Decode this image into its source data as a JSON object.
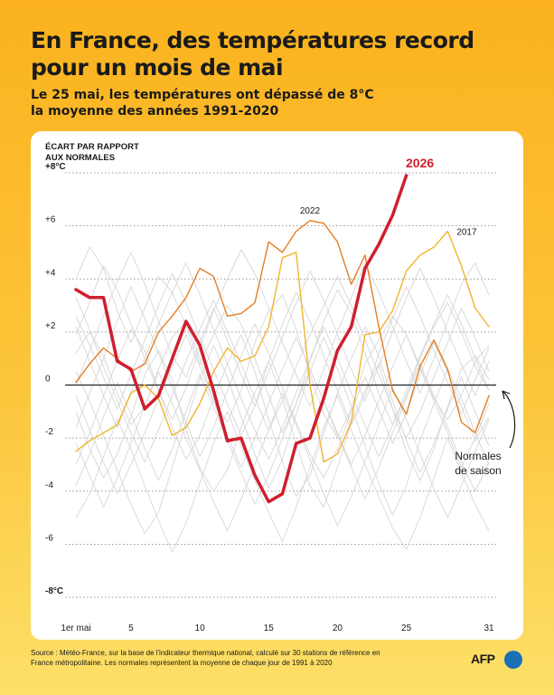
{
  "header": {
    "title_line1": "En France, des températures record",
    "title_line2": "pour un mois de mai",
    "subtitle_line1": "Le 25 mai, les températures ont dépassé de 8°C",
    "subtitle_line2": "la moyenne des années 1991-2020"
  },
  "footer": {
    "source_line1": "Source : Météo-France, sur la base de l'indicateur thermique national, calculé sur 30 stations de référence en",
    "source_line2": "France métropolitaine. Les normales représentent la moyenne de chaque jour de 1991 à 2020",
    "logo": "AFP"
  },
  "chart_data": {
    "type": "line",
    "ylabel_line1": "ÉCART PAR RAPPORT",
    "ylabel_line2": "AUX NORMALES",
    "ylim": [
      -8,
      8
    ],
    "xlim": [
      1,
      31
    ],
    "y_ticks": [
      "+8°C",
      "+6",
      "+4",
      "+2",
      "0",
      "-2",
      "-4",
      "-6",
      "-8°C"
    ],
    "x_ticks": [
      {
        "x": 1,
        "label": "1er mai"
      },
      {
        "x": 5,
        "label": "5"
      },
      {
        "x": 10,
        "label": "10"
      },
      {
        "x": 15,
        "label": "15"
      },
      {
        "x": 20,
        "label": "20"
      },
      {
        "x": 25,
        "label": "25"
      },
      {
        "x": 31,
        "label": "31"
      }
    ],
    "grid": "horizontal dotted",
    "annotation": {
      "line1": "Normales",
      "line2": "de saison"
    },
    "colors": {
      "y2026": "#cf1f2e",
      "y2022": "#e67e22",
      "y2017": "#f0b52d",
      "other": "#d6d6d6",
      "zero": "#222222"
    },
    "series": [
      {
        "name": "2026",
        "x": [
          1,
          2,
          3,
          4,
          5,
          6,
          7,
          8,
          9,
          10,
          11,
          12,
          13,
          14,
          15,
          16,
          17,
          18,
          19,
          20,
          21,
          22,
          23,
          24,
          25
        ],
        "values": [
          3.6,
          3.3,
          3.3,
          0.9,
          0.6,
          -0.9,
          -0.4,
          1.0,
          2.4,
          1.5,
          -0.2,
          -2.1,
          -2.0,
          -3.4,
          -4.4,
          -4.1,
          -2.2,
          -2.0,
          -0.5,
          1.3,
          2.2,
          4.4,
          5.3,
          6.4,
          7.9
        ]
      },
      {
        "name": "2022",
        "x": [
          1,
          2,
          3,
          4,
          5,
          6,
          7,
          8,
          9,
          10,
          11,
          12,
          13,
          14,
          15,
          16,
          17,
          18,
          19,
          20,
          21,
          22,
          23,
          24,
          25,
          26,
          27,
          28,
          29,
          30,
          31
        ],
        "values": [
          0.1,
          0.8,
          1.4,
          1.0,
          0.5,
          0.8,
          2.0,
          2.6,
          3.3,
          4.4,
          4.1,
          2.6,
          2.7,
          3.1,
          5.4,
          5.0,
          5.8,
          6.2,
          6.1,
          5.4,
          3.8,
          4.9,
          2.2,
          -0.2,
          -1.1,
          0.7,
          1.7,
          0.6,
          -1.4,
          -1.8,
          -0.4
        ]
      },
      {
        "name": "2017",
        "x": [
          1,
          2,
          3,
          4,
          5,
          6,
          7,
          8,
          9,
          10,
          11,
          12,
          13,
          14,
          15,
          16,
          17,
          18,
          19,
          20,
          21,
          22,
          23,
          24,
          25,
          26,
          27,
          28,
          29,
          30,
          31
        ],
        "values": [
          -2.5,
          -2.1,
          -1.8,
          -1.5,
          -0.3,
          0.0,
          -0.5,
          -1.9,
          -1.6,
          -0.7,
          0.5,
          1.4,
          0.9,
          1.1,
          2.2,
          4.8,
          5.0,
          0.0,
          -2.9,
          -2.6,
          -1.4,
          1.9,
          2.0,
          2.8,
          4.3,
          4.9,
          5.2,
          5.8,
          4.5,
          2.9,
          2.2
        ]
      },
      {
        "x": [
          1,
          2,
          3,
          4,
          5,
          6,
          7,
          8,
          9,
          10,
          11,
          12,
          13,
          14,
          15,
          16,
          17,
          18,
          19,
          20,
          21,
          22,
          23,
          24,
          25,
          26,
          27,
          28,
          29,
          30,
          31
        ],
        "values": [
          1.2,
          2.0,
          1.1,
          -0.3,
          -1.5,
          -0.8,
          0.6,
          1.8,
          2.4,
          1.0,
          -0.6,
          -1.4,
          -0.2,
          1.6,
          2.8,
          3.4,
          2.1,
          0.4,
          -1.1,
          -2.0,
          -0.9,
          0.8,
          1.7,
          2.6,
          1.9,
          0.6,
          -0.5,
          -1.3,
          -0.4,
          0.9,
          1.5
        ]
      },
      {
        "x": [
          1,
          2,
          3,
          4,
          5,
          6,
          7,
          8,
          9,
          10,
          11,
          12,
          13,
          14,
          15,
          16,
          17,
          18,
          19,
          20,
          21,
          22,
          23,
          24,
          25,
          26,
          27,
          28,
          29,
          30,
          31
        ],
        "values": [
          -1.0,
          -2.4,
          -3.5,
          -2.6,
          -1.2,
          0.4,
          1.3,
          0.2,
          -1.7,
          -3.1,
          -4.0,
          -3.2,
          -1.6,
          -0.3,
          0.9,
          -0.5,
          -2.2,
          -3.8,
          -4.6,
          -3.1,
          -1.4,
          -0.2,
          0.8,
          -0.9,
          -2.5,
          -3.6,
          -2.4,
          -0.8,
          0.6,
          1.1,
          0.2
        ]
      },
      {
        "x": [
          1,
          2,
          3,
          4,
          5,
          6,
          7,
          8,
          9,
          10,
          11,
          12,
          13,
          14,
          15,
          16,
          17,
          18,
          19,
          20,
          21,
          22,
          23,
          24,
          25,
          26,
          27,
          28,
          29,
          30,
          31
        ],
        "values": [
          4.0,
          5.2,
          4.4,
          2.8,
          1.6,
          2.9,
          4.1,
          3.5,
          2.2,
          0.8,
          1.9,
          3.0,
          2.3,
          1.0,
          -0.4,
          -1.8,
          -0.7,
          0.9,
          2.4,
          3.6,
          2.7,
          1.2,
          -0.3,
          -1.5,
          -0.4,
          1.0,
          2.2,
          3.1,
          2.0,
          0.7,
          -0.2
        ]
      },
      {
        "x": [
          1,
          2,
          3,
          4,
          5,
          6,
          7,
          8,
          9,
          10,
          11,
          12,
          13,
          14,
          15,
          16,
          17,
          18,
          19,
          20,
          21,
          22,
          23,
          24,
          25,
          26,
          27,
          28,
          29,
          30,
          31
        ],
        "values": [
          -3.0,
          -1.8,
          -0.4,
          0.9,
          2.1,
          1.3,
          -0.2,
          -1.6,
          -2.8,
          -1.9,
          -0.5,
          0.8,
          1.9,
          0.5,
          -1.3,
          -2.9,
          -4.2,
          -3.4,
          -1.8,
          -0.3,
          1.0,
          2.2,
          1.1,
          -0.6,
          -2.1,
          -3.3,
          -2.2,
          -0.9,
          0.3,
          -1.0,
          -2.3
        ]
      },
      {
        "x": [
          1,
          2,
          3,
          4,
          5,
          6,
          7,
          8,
          9,
          10,
          11,
          12,
          13,
          14,
          15,
          16,
          17,
          18,
          19,
          20,
          21,
          22,
          23,
          24,
          25,
          26,
          27,
          28,
          29,
          30,
          31
        ],
        "values": [
          0.5,
          -0.6,
          -1.9,
          -3.2,
          -4.5,
          -5.6,
          -4.8,
          -3.1,
          -1.4,
          0.2,
          1.5,
          0.3,
          -1.2,
          -2.6,
          -3.9,
          -2.8,
          -1.1,
          0.5,
          1.8,
          0.6,
          -0.8,
          -2.3,
          -3.7,
          -4.9,
          -3.8,
          -2.1,
          -0.7,
          0.6,
          -0.5,
          -1.8,
          -3.0
        ]
      },
      {
        "x": [
          1,
          2,
          3,
          4,
          5,
          6,
          7,
          8,
          9,
          10,
          11,
          12,
          13,
          14,
          15,
          16,
          17,
          18,
          19,
          20,
          21,
          22,
          23,
          24,
          25,
          26,
          27,
          28,
          29,
          30,
          31
        ],
        "values": [
          2.6,
          1.5,
          0.3,
          -0.9,
          0.4,
          1.7,
          3.0,
          4.2,
          3.1,
          1.8,
          0.6,
          -0.7,
          -1.9,
          -0.8,
          0.9,
          2.3,
          3.5,
          2.4,
          1.1,
          -0.2,
          -1.5,
          -0.4,
          1.2,
          2.5,
          3.7,
          2.6,
          1.3,
          0.1,
          -1.1,
          0.2,
          1.4
        ]
      },
      {
        "x": [
          1,
          2,
          3,
          4,
          5,
          6,
          7,
          8,
          9,
          10,
          11,
          12,
          13,
          14,
          15,
          16,
          17,
          18,
          19,
          20,
          21,
          22,
          23,
          24,
          25,
          26,
          27,
          28,
          29,
          30,
          31
        ],
        "values": [
          -5.0,
          -4.1,
          -2.7,
          -1.3,
          -2.4,
          -3.8,
          -5.1,
          -6.3,
          -5.2,
          -3.7,
          -2.2,
          -1.0,
          -2.3,
          -3.6,
          -4.8,
          -5.9,
          -4.6,
          -3.1,
          -1.6,
          -0.4,
          -1.7,
          -3.0,
          -4.2,
          -5.4,
          -6.2,
          -5.0,
          -3.5,
          -2.0,
          -3.3,
          -4.5,
          -5.5
        ]
      },
      {
        "x": [
          1,
          2,
          3,
          4,
          5,
          6,
          7,
          8,
          9,
          10,
          11,
          12,
          13,
          14,
          15,
          16,
          17,
          18,
          19,
          20,
          21,
          22,
          23,
          24,
          25,
          26,
          27,
          28,
          29,
          30,
          31
        ],
        "values": [
          1.9,
          3.1,
          4.5,
          3.6,
          2.3,
          1.0,
          -0.2,
          -1.3,
          -0.1,
          1.4,
          2.8,
          4.0,
          5.1,
          4.2,
          2.9,
          1.6,
          0.4,
          -0.8,
          0.6,
          2.0,
          3.3,
          4.6,
          3.5,
          2.2,
          0.9,
          -0.3,
          1.0,
          2.4,
          3.8,
          4.6,
          3.4
        ]
      },
      {
        "x": [
          1,
          2,
          3,
          4,
          5,
          6,
          7,
          8,
          9,
          10,
          11,
          12,
          13,
          14,
          15,
          16,
          17,
          18,
          19,
          20,
          21,
          22,
          23,
          24,
          25,
          26,
          27,
          28,
          29,
          30,
          31
        ],
        "values": [
          -1.6,
          -0.3,
          1.0,
          2.4,
          3.7,
          2.5,
          1.2,
          -0.1,
          -1.4,
          -2.7,
          -1.6,
          -0.2,
          1.1,
          2.3,
          1.2,
          -0.1,
          -1.4,
          -2.6,
          -3.5,
          -2.4,
          -1.0,
          0.3,
          -0.9,
          -2.2,
          -1.1,
          0.4,
          1.6,
          0.5,
          -0.8,
          -2.1,
          -1.2
        ]
      },
      {
        "x": [
          1,
          2,
          3,
          4,
          5,
          6,
          7,
          8,
          9,
          10,
          11,
          12,
          13,
          14,
          15,
          16,
          17,
          18,
          19,
          20,
          21,
          22,
          23,
          24,
          25,
          26,
          27,
          28,
          29,
          30,
          31
        ],
        "values": [
          3.3,
          2.1,
          0.7,
          -0.6,
          -1.8,
          -2.9,
          -1.7,
          -0.4,
          0.9,
          2.1,
          3.2,
          2.0,
          0.8,
          -0.5,
          -1.7,
          -0.6,
          0.7,
          1.9,
          3.0,
          4.1,
          3.0,
          1.7,
          0.4,
          -0.9,
          -2.0,
          -1.0,
          0.3,
          1.6,
          2.9,
          1.8,
          0.5
        ]
      },
      {
        "x": [
          1,
          2,
          3,
          4,
          5,
          6,
          7,
          8,
          9,
          10,
          11,
          12,
          13,
          14,
          15,
          16,
          17,
          18,
          19,
          20,
          21,
          22,
          23,
          24,
          25,
          26,
          27,
          28,
          29,
          30,
          31
        ],
        "values": [
          -2.2,
          -3.4,
          -4.6,
          -3.5,
          -2.2,
          -0.8,
          0.5,
          -0.7,
          -2.0,
          -3.2,
          -4.4,
          -5.5,
          -4.3,
          -3.0,
          -1.7,
          -0.3,
          -1.5,
          -2.8,
          -4.1,
          -5.3,
          -4.2,
          -2.9,
          -1.5,
          -0.1,
          -1.3,
          -2.6,
          -3.9,
          -5.0,
          -3.8,
          -2.5,
          -1.3
        ]
      },
      {
        "x": [
          1,
          2,
          3,
          4,
          5,
          6,
          7,
          8,
          9,
          10,
          11,
          12,
          13,
          14,
          15,
          16,
          17,
          18,
          19,
          20,
          21,
          22,
          23,
          24,
          25,
          26,
          27,
          28,
          29,
          30,
          31
        ],
        "values": [
          0.0,
          1.3,
          2.6,
          3.9,
          5.0,
          3.8,
          2.4,
          1.1,
          0.3,
          1.6,
          2.9,
          1.7,
          0.4,
          -0.8,
          0.5,
          1.8,
          3.1,
          4.3,
          3.2,
          1.9,
          0.6,
          -0.6,
          0.7,
          2.0,
          3.3,
          4.4,
          3.3,
          2.0,
          0.8,
          -0.4,
          0.9
        ]
      },
      {
        "x": [
          1,
          2,
          3,
          4,
          5,
          6,
          7,
          8,
          9,
          10,
          11,
          12,
          13,
          14,
          15,
          16,
          17,
          18,
          19,
          20,
          21,
          22,
          23,
          24,
          25,
          26,
          27,
          28,
          29,
          30,
          31
        ],
        "values": [
          -3.8,
          -2.6,
          -1.2,
          0.1,
          -1.1,
          -2.4,
          -3.6,
          -2.4,
          -1.0,
          0.4,
          -0.8,
          -2.1,
          -3.3,
          -4.5,
          -3.4,
          -2.0,
          -0.7,
          0.6,
          -0.6,
          -1.9,
          -3.1,
          -4.3,
          -3.1,
          -1.8,
          -0.5,
          0.8,
          -0.4,
          -1.6,
          -2.9,
          -4.0,
          -2.9
        ]
      },
      {
        "x": [
          1,
          2,
          3,
          4,
          5,
          6,
          7,
          8,
          9,
          10,
          11,
          12,
          13,
          14,
          15,
          16,
          17,
          18,
          19,
          20,
          21,
          22,
          23,
          24,
          25,
          26,
          27,
          28,
          29,
          30,
          31
        ],
        "values": [
          2.2,
          0.9,
          -0.4,
          -1.6,
          -0.3,
          1.0,
          2.3,
          3.5,
          4.6,
          3.4,
          2.1,
          0.8,
          -0.5,
          -1.7,
          -2.8,
          -1.6,
          -0.3,
          1.0,
          2.2,
          1.0,
          -0.3,
          -1.5,
          -2.7,
          -1.5,
          -0.2,
          1.1,
          2.3,
          3.4,
          2.3,
          1.0,
          -0.2
        ]
      },
      {
        "x": [
          1,
          2,
          3,
          4,
          5,
          6,
          7,
          8,
          9,
          10,
          11,
          12,
          13,
          14,
          15,
          16,
          17,
          18,
          19,
          20,
          21,
          22,
          23,
          24,
          25,
          26,
          27,
          28,
          29,
          30,
          31
        ],
        "values": [
          -0.4,
          -1.7,
          -2.9,
          -4.1,
          -3.0,
          -1.8,
          -0.5,
          0.7,
          1.9,
          0.7,
          -0.6,
          -1.9,
          -3.1,
          -2.0,
          -0.7,
          0.6,
          1.8,
          0.6,
          -0.6,
          -1.8,
          -3.0,
          -1.9,
          -0.6,
          0.7,
          1.9,
          0.7,
          -0.6,
          -1.8,
          -3.1,
          -2.0,
          -0.7
        ]
      }
    ]
  }
}
